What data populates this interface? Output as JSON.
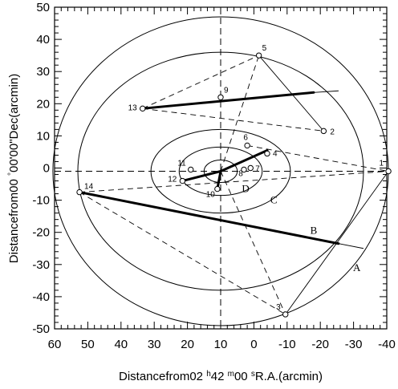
{
  "chart_data": {
    "type": "scatter",
    "xlabel": "Distancefrom02  h42  m00  sR.A.(arcmin)",
    "xlabel_parts": [
      "Distancefrom02 ",
      "h",
      "42 ",
      "m",
      "00 ",
      "s",
      "R.A.(arcmin)"
    ],
    "ylabel": "Distancefrom00  °00'00\"Dec(arcmin)",
    "ylabel_parts": [
      "Distancefrom00 ",
      "°",
      "00'00\"Dec(arcmin)"
    ],
    "xlim": [
      60,
      -40
    ],
    "ylim": [
      -50,
      50
    ],
    "x_ticks": [
      60,
      50,
      40,
      30,
      20,
      10,
      0,
      -10,
      -20,
      -30,
      -40
    ],
    "y_ticks": [
      50,
      40,
      30,
      20,
      10,
      0,
      -10,
      -20,
      -30,
      -40,
      -50
    ],
    "grid": false,
    "center": [
      10,
      -1
    ],
    "reference_lines": {
      "vertical_x": 10,
      "horizontal_y": -1,
      "style": "dashed"
    },
    "points": [
      {
        "id": "1",
        "x": -40.5,
        "y": -1
      },
      {
        "id": "2",
        "x": -21,
        "y": 11.5
      },
      {
        "id": "3",
        "x": -9.5,
        "y": -45.5
      },
      {
        "id": "4",
        "x": -4,
        "y": 4.5
      },
      {
        "id": "5",
        "x": -1.5,
        "y": 35
      },
      {
        "id": "6",
        "x": 2,
        "y": 7
      },
      {
        "id": "7",
        "x": 1,
        "y": 0
      },
      {
        "id": "8",
        "x": 3,
        "y": -0.5
      },
      {
        "id": "9",
        "x": 10,
        "y": 22
      },
      {
        "id": "10",
        "x": 11,
        "y": -6.5
      },
      {
        "id": "11",
        "x": 19,
        "y": -0.5
      },
      {
        "id": "12",
        "x": 21.5,
        "y": -4
      },
      {
        "id": "13",
        "x": 33.5,
        "y": 18.5
      },
      {
        "id": "14",
        "x": 52.5,
        "y": -7.5
      }
    ],
    "ellipses": [
      {
        "label": "A",
        "cx": 10,
        "cy": -1,
        "rx": 50.5,
        "ry": 48
      },
      {
        "label": "B",
        "cx": 10,
        "cy": -1,
        "rx": 43,
        "ry": 37
      },
      {
        "label": "C",
        "cx": 10,
        "cy": -1,
        "rx": 21,
        "ry": 13
      },
      {
        "label": "D",
        "cx": 10,
        "cy": -1,
        "rx": 12.5,
        "ry": 7.5
      },
      {
        "label": "",
        "cx": 10,
        "cy": -1,
        "rx": 5,
        "ry": 3.5
      }
    ],
    "ring_labels": [
      {
        "text": "A",
        "x": -31,
        "y": -32
      },
      {
        "text": "B",
        "x": -18,
        "y": -20.5
      },
      {
        "text": "C",
        "x": -6,
        "y": -11
      },
      {
        "text": "D",
        "x": 2.5,
        "y": -7.5
      }
    ],
    "thick_segments": [
      {
        "from": [
          33.5,
          18.5
        ],
        "to": [
          -18,
          23.5
        ]
      },
      {
        "from": [
          52.5,
          -7.5
        ],
        "to": [
          -25.5,
          -23.5
        ]
      },
      {
        "from": [
          10,
          -1
        ],
        "to": [
          -4,
          5.5
        ]
      },
      {
        "from": [
          10,
          -1
        ],
        "to": [
          21.5,
          -4
        ]
      },
      {
        "from": [
          10,
          -1
        ],
        "to": [
          11,
          -6.5
        ]
      }
    ],
    "thin_segments": [
      {
        "from": [
          -1.5,
          35
        ],
        "to": [
          -21,
          11.5
        ]
      },
      {
        "from": [
          -9.5,
          -45.5
        ],
        "to": [
          -40.5,
          -1
        ]
      },
      {
        "from": [
          -18,
          23.5
        ],
        "to": [
          -25.5,
          24
        ]
      },
      {
        "from": [
          -25.5,
          -23.5
        ],
        "to": [
          -33,
          -25
        ]
      }
    ],
    "dashed_segments": [
      {
        "from": [
          33.5,
          18.5
        ],
        "to": [
          -1.5,
          35
        ]
      },
      {
        "from": [
          33.5,
          18.5
        ],
        "to": [
          -21,
          11.5
        ]
      },
      {
        "from": [
          52.5,
          -7.5
        ],
        "to": [
          -40.5,
          -1
        ]
      },
      {
        "from": [
          52.5,
          -7.5
        ],
        "to": [
          -9.5,
          -45.5
        ]
      },
      {
        "from": [
          2,
          7
        ],
        "to": [
          -40.5,
          -1
        ]
      },
      {
        "from": [
          10,
          -1
        ],
        "to": [
          -1.5,
          35
        ]
      },
      {
        "from": [
          10,
          -1
        ],
        "to": [
          -9.5,
          -45.5
        ]
      }
    ]
  }
}
